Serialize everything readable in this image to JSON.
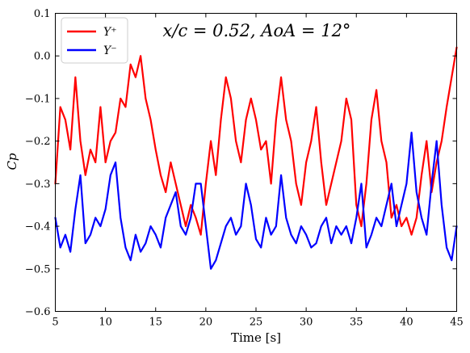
{
  "chart_data": {
    "type": "line",
    "annotation": "x/c = 0.52,  AoA = 12°",
    "xlabel": "Time [s]",
    "ylabel": "Cp",
    "xlim": [
      5,
      45
    ],
    "ylim": [
      -0.6,
      0.1
    ],
    "xticks": [
      5,
      10,
      15,
      20,
      25,
      30,
      35,
      40,
      45
    ],
    "yticks": [
      -0.6,
      -0.5,
      -0.4,
      -0.3,
      -0.2,
      -0.1,
      0.0,
      0.1
    ],
    "xtick_labels": [
      "5",
      "10",
      "15",
      "20",
      "25",
      "30",
      "35",
      "40",
      "45"
    ],
    "ytick_labels": [
      "−0.6",
      "−0.5",
      "−0.4",
      "−0.3",
      "−0.2",
      "−0.1",
      "0.0",
      "0.1"
    ],
    "grid": false,
    "legend_position": "top-left",
    "series": [
      {
        "name": "Y⁺",
        "color": "#ff0000",
        "x": [
          5,
          5.5,
          6,
          6.5,
          7,
          7.5,
          8,
          8.5,
          9,
          9.5,
          10,
          10.5,
          11,
          11.5,
          12,
          12.5,
          13,
          13.5,
          14,
          14.5,
          15,
          15.5,
          16,
          16.5,
          17,
          17.5,
          18,
          18.5,
          19,
          19.5,
          20,
          20.5,
          21,
          21.5,
          22,
          22.5,
          23,
          23.5,
          24,
          24.5,
          25,
          25.5,
          26,
          26.5,
          27,
          27.5,
          28,
          28.5,
          29,
          29.5,
          30,
          30.5,
          31,
          31.5,
          32,
          32.5,
          33,
          33.5,
          34,
          34.5,
          35,
          35.5,
          36,
          36.5,
          37,
          37.5,
          38,
          38.5,
          39,
          39.5,
          40,
          40.5,
          41,
          41.5,
          42,
          42.5,
          43,
          43.5,
          44,
          44.5,
          45
        ],
        "y": [
          -0.3,
          -0.12,
          -0.15,
          -0.22,
          -0.05,
          -0.2,
          -0.28,
          -0.22,
          -0.25,
          -0.12,
          -0.25,
          -0.2,
          -0.18,
          -0.1,
          -0.12,
          -0.02,
          -0.05,
          0.0,
          -0.1,
          -0.15,
          -0.22,
          -0.28,
          -0.32,
          -0.25,
          -0.3,
          -0.35,
          -0.4,
          -0.35,
          -0.38,
          -0.42,
          -0.3,
          -0.2,
          -0.28,
          -0.15,
          -0.05,
          -0.1,
          -0.2,
          -0.25,
          -0.15,
          -0.1,
          -0.15,
          -0.22,
          -0.2,
          -0.3,
          -0.15,
          -0.05,
          -0.15,
          -0.2,
          -0.3,
          -0.35,
          -0.25,
          -0.2,
          -0.12,
          -0.25,
          -0.35,
          -0.3,
          -0.25,
          -0.2,
          -0.1,
          -0.15,
          -0.35,
          -0.4,
          -0.3,
          -0.15,
          -0.08,
          -0.2,
          -0.25,
          -0.38,
          -0.35,
          -0.4,
          -0.38,
          -0.42,
          -0.38,
          -0.28,
          -0.2,
          -0.32,
          -0.25,
          -0.2,
          -0.12,
          -0.05,
          0.02
        ]
      },
      {
        "name": "Y⁻",
        "color": "#0000ff",
        "x": [
          5,
          5.5,
          6,
          6.5,
          7,
          7.5,
          8,
          8.5,
          9,
          9.5,
          10,
          10.5,
          11,
          11.5,
          12,
          12.5,
          13,
          13.5,
          14,
          14.5,
          15,
          15.5,
          16,
          16.5,
          17,
          17.5,
          18,
          18.5,
          19,
          19.5,
          20,
          20.5,
          21,
          21.5,
          22,
          22.5,
          23,
          23.5,
          24,
          24.5,
          25,
          25.5,
          26,
          26.5,
          27,
          27.5,
          28,
          28.5,
          29,
          29.5,
          30,
          30.5,
          31,
          31.5,
          32,
          32.5,
          33,
          33.5,
          34,
          34.5,
          35,
          35.5,
          36,
          36.5,
          37,
          37.5,
          38,
          38.5,
          39,
          39.5,
          40,
          40.5,
          41,
          41.5,
          42,
          42.5,
          43,
          43.5,
          44,
          44.5,
          45
        ],
        "y": [
          -0.38,
          -0.45,
          -0.42,
          -0.46,
          -0.36,
          -0.28,
          -0.44,
          -0.42,
          -0.38,
          -0.4,
          -0.36,
          -0.28,
          -0.25,
          -0.38,
          -0.45,
          -0.48,
          -0.42,
          -0.46,
          -0.44,
          -0.4,
          -0.42,
          -0.45,
          -0.38,
          -0.35,
          -0.32,
          -0.4,
          -0.42,
          -0.38,
          -0.3,
          -0.3,
          -0.4,
          -0.5,
          -0.48,
          -0.44,
          -0.4,
          -0.38,
          -0.42,
          -0.4,
          -0.3,
          -0.35,
          -0.43,
          -0.45,
          -0.38,
          -0.42,
          -0.4,
          -0.28,
          -0.38,
          -0.42,
          -0.44,
          -0.4,
          -0.42,
          -0.45,
          -0.44,
          -0.4,
          -0.38,
          -0.44,
          -0.4,
          -0.42,
          -0.4,
          -0.44,
          -0.38,
          -0.3,
          -0.45,
          -0.42,
          -0.38,
          -0.4,
          -0.35,
          -0.3,
          -0.4,
          -0.35,
          -0.3,
          -0.18,
          -0.32,
          -0.38,
          -0.42,
          -0.3,
          -0.2,
          -0.35,
          -0.45,
          -0.48,
          -0.4
        ]
      }
    ]
  }
}
